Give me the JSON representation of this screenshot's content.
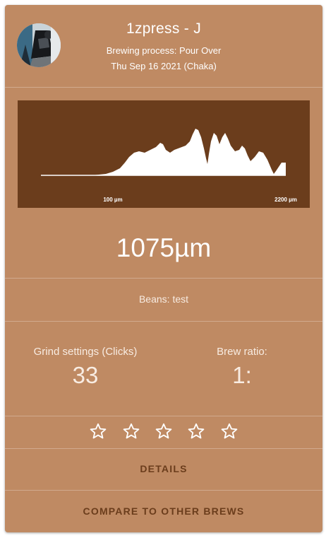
{
  "header": {
    "title": "1zpress - J",
    "process_line": "Brewing process: Pour Over",
    "date_line": "Thu Sep 16 2021 (Chaka)"
  },
  "chart_data": {
    "type": "area",
    "x_ticks": [
      "100 µm",
      "2200 µm"
    ],
    "colors": {
      "background": "#6b3d1c",
      "fill": "#ffffff"
    }
  },
  "summary": {
    "micron": "1075µm",
    "beans": "Beans: test"
  },
  "stats": {
    "grind_label": "Grind settings (Clicks)",
    "grind_value": "33",
    "ratio_label": "Brew ratio:",
    "ratio_value": "1:"
  },
  "rating": {
    "max": 5,
    "value": 0
  },
  "actions": {
    "details": "DETAILS",
    "compare": "COMPARE TO OTHER BREWS"
  },
  "colors": {
    "card": "#bf8a63",
    "chart_bg": "#6b3d1c",
    "accent_text": "#6b3d1c"
  }
}
